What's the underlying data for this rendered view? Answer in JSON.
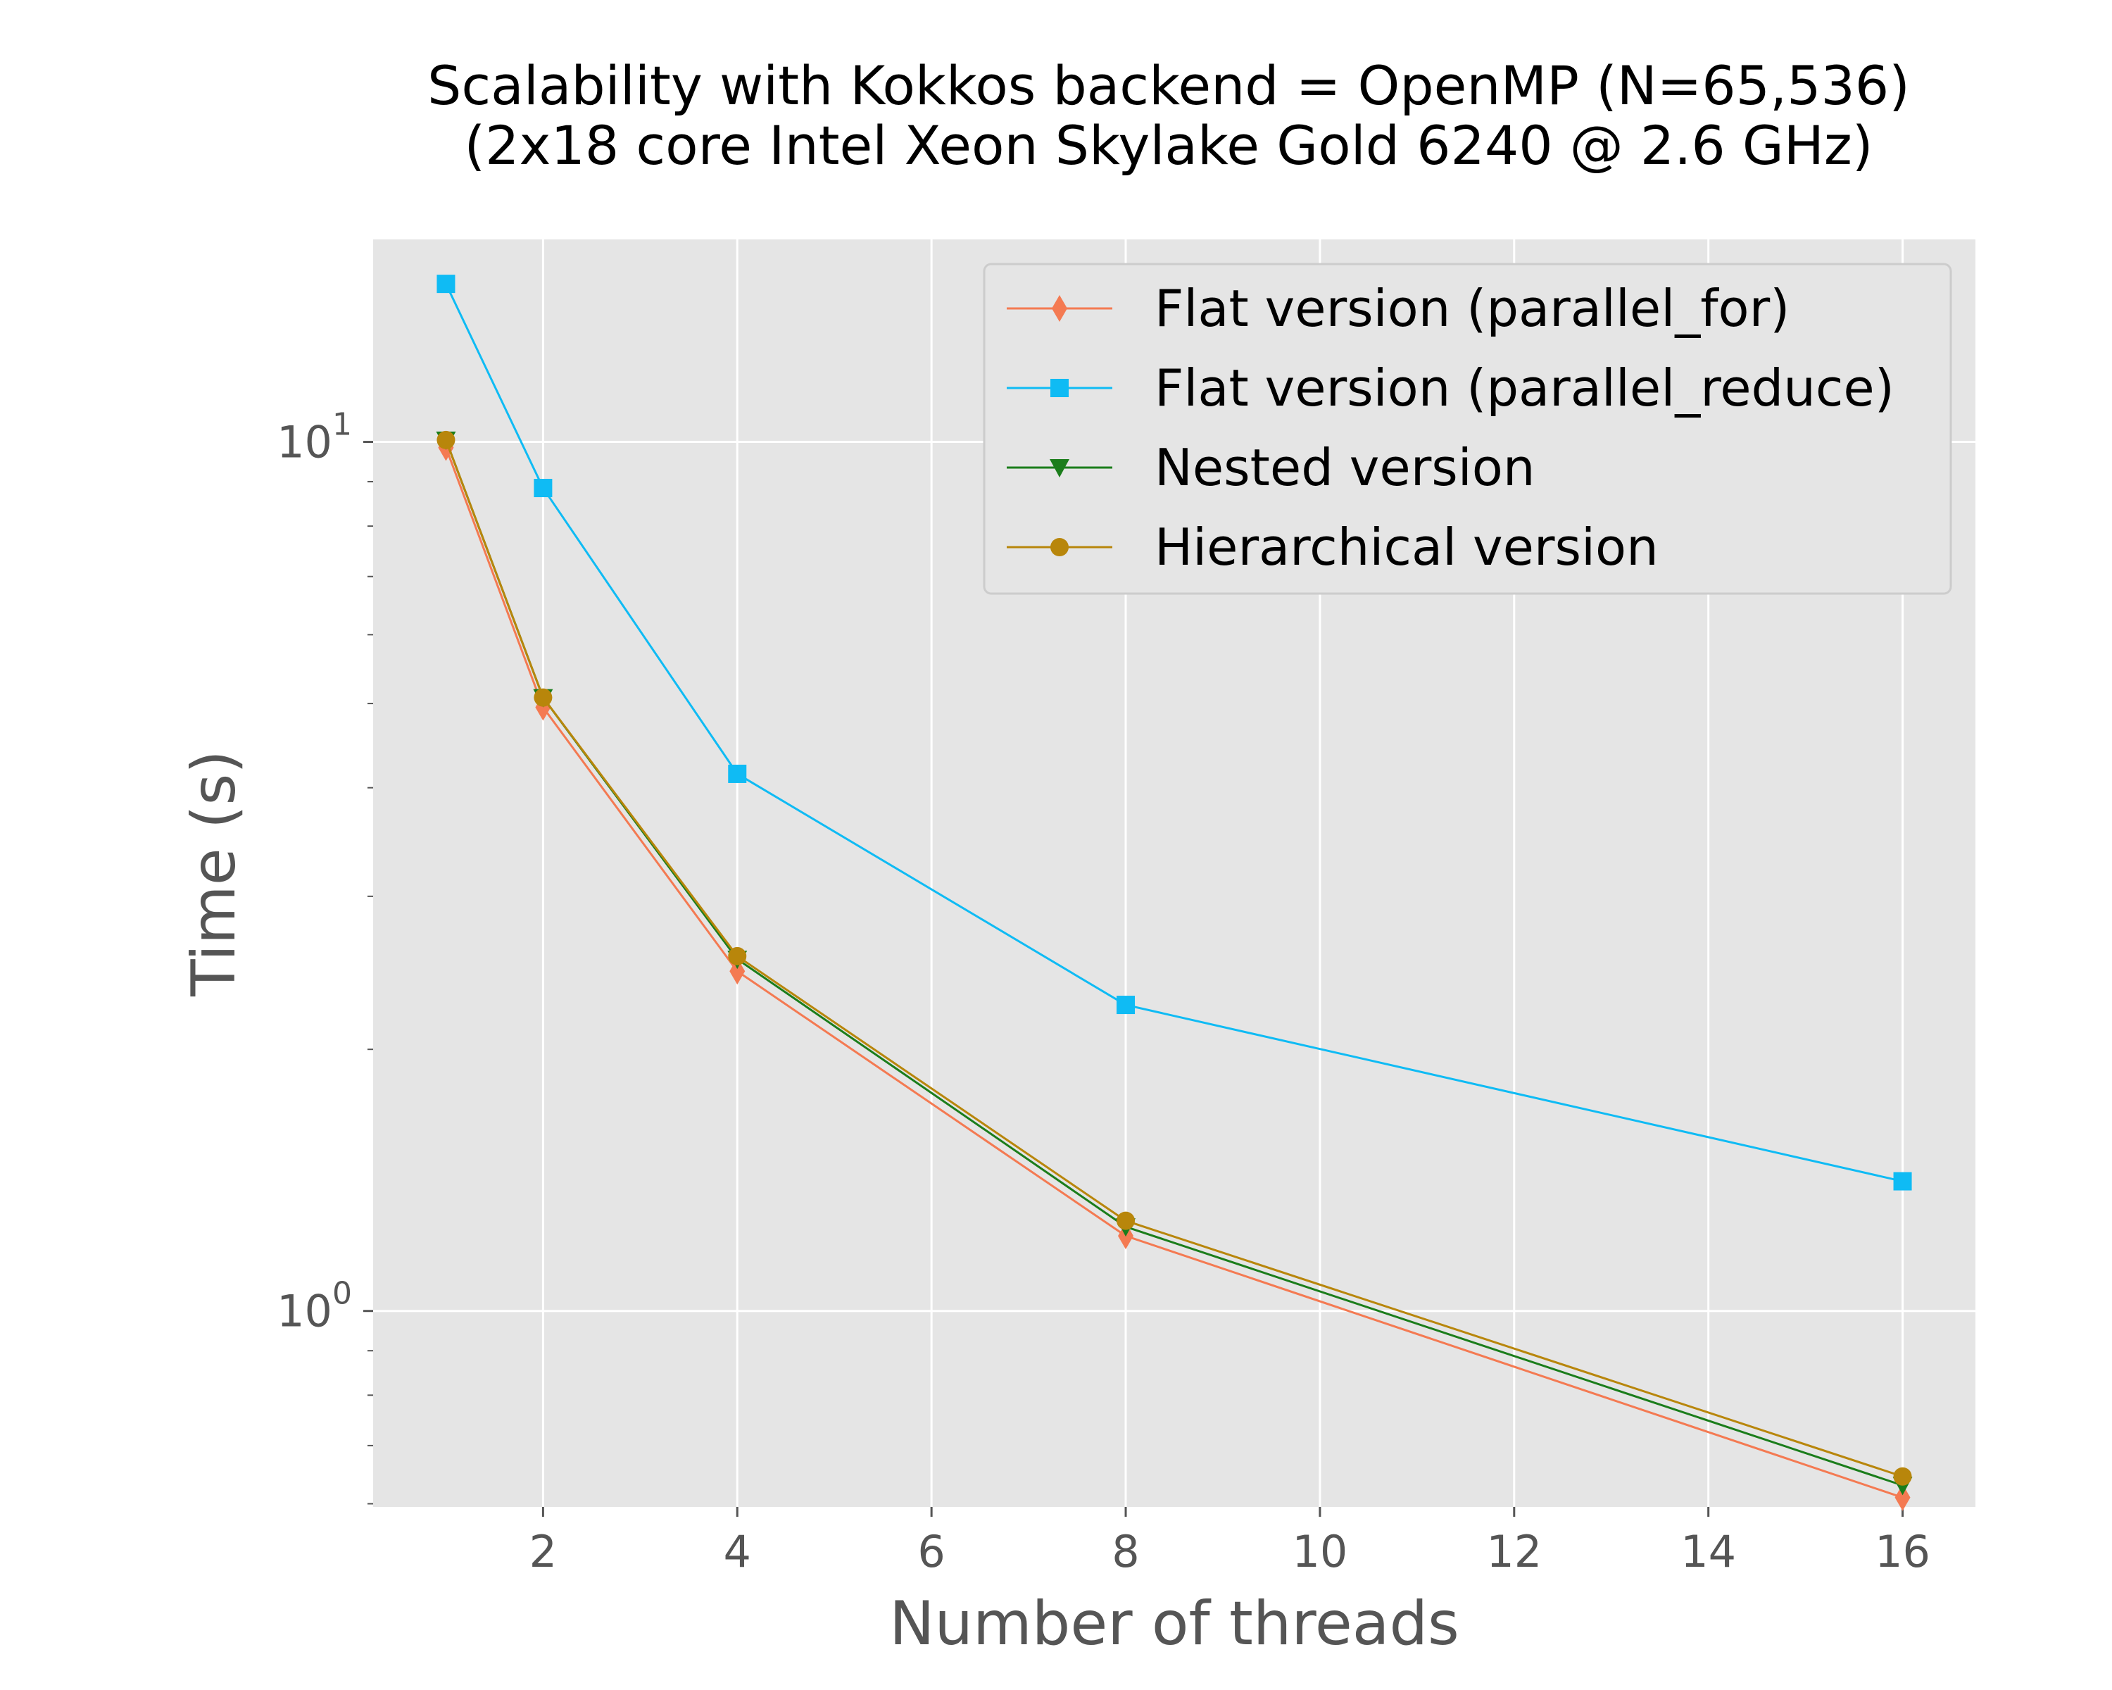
{
  "chart_data": {
    "type": "line",
    "title": "Scalability with Kokkos backend = OpenMP (N=65,536)",
    "subtitle": "(2x18 core Intel Xeon Skylake Gold 6240 @ 2.6 GHz)",
    "xlabel": "Number of threads",
    "ylabel": "Time (s)",
    "xlim": [
      0.25,
      16.75
    ],
    "ylim": [
      0.595,
      17.1
    ],
    "yscale": "log",
    "x_ticks": [
      2,
      4,
      6,
      8,
      10,
      12,
      14,
      16
    ],
    "y_major_ticks": [
      {
        "base": "10",
        "exp": "0",
        "value": 1
      },
      {
        "base": "10",
        "exp": "1",
        "value": 10
      }
    ],
    "grid": true,
    "legend_position": "top-right",
    "x": [
      1,
      2,
      4,
      8,
      16
    ],
    "series": [
      {
        "name": "Flat version (parallel_for)",
        "color": "#f47a52",
        "marker": "diamond",
        "values": [
          9.85,
          4.95,
          2.46,
          1.22,
          0.61
        ]
      },
      {
        "name": "Flat version (parallel_reduce)",
        "color": "#0fbbf4",
        "marker": "square",
        "values": [
          15.2,
          8.85,
          4.15,
          2.25,
          1.41
        ]
      },
      {
        "name": "Nested version",
        "color": "#1b7d1b",
        "marker": "triangle-down",
        "values": [
          10.05,
          5.08,
          2.54,
          1.25,
          0.63
        ]
      },
      {
        "name": "Hierarchical version",
        "color": "#b8860b",
        "marker": "circle",
        "values": [
          10.05,
          5.08,
          2.56,
          1.27,
          0.645
        ]
      }
    ]
  }
}
